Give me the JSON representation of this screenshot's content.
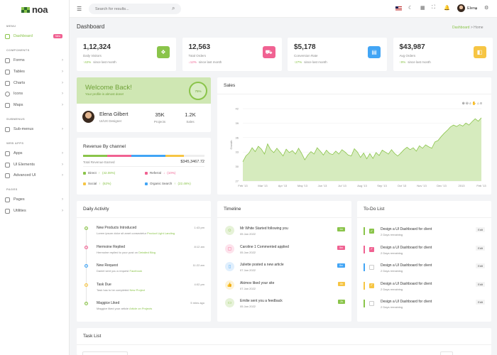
{
  "brand": {
    "name": "noa",
    "colors": [
      "#8ac44a",
      "#2d6a2d",
      "#8ac44a",
      "#2d6a2d",
      "#8ac44a",
      "#2d6a2d"
    ]
  },
  "sidebar": {
    "sections": [
      {
        "label": "MENU"
      },
      {
        "label": "COMPONENTS"
      },
      {
        "label": "SUBMENUS"
      },
      {
        "label": "WEB APPS"
      },
      {
        "label": "PAGES"
      }
    ],
    "dashboard": {
      "label": "Dashboard",
      "badge": "New"
    },
    "items": [
      {
        "label": "Forms"
      },
      {
        "label": "Tables"
      },
      {
        "label": "Charts"
      },
      {
        "label": "Icons"
      },
      {
        "label": "Maps"
      },
      {
        "label": "Sub-menus"
      },
      {
        "label": "Apps"
      },
      {
        "label": "UI Elements"
      },
      {
        "label": "Advanced UI"
      },
      {
        "label": "Pages"
      },
      {
        "label": "Utilities"
      }
    ]
  },
  "topbar": {
    "search_placeholder": "Search for results...",
    "user_name": "Elena"
  },
  "page": {
    "title": "Dashboard",
    "crumb_parent": "Dashboard",
    "crumb_sep": ">",
    "crumb_current": "Home"
  },
  "stats": [
    {
      "value": "1,12,324",
      "label": "Daily Visitors",
      "change": "42%",
      "since": "since last month",
      "dir": "up",
      "color": "#8ac44a",
      "icon": "bag-icon"
    },
    {
      "value": "12,563",
      "label": "Total Orders",
      "change": "12%",
      "since": "since last month",
      "dir": "down",
      "color": "#f06292",
      "icon": "cart-icon"
    },
    {
      "value": "$5,178",
      "label": "Conversion Rate",
      "change": "27%",
      "since": "since last month",
      "dir": "up",
      "color": "#42a5f5",
      "icon": "chart-icon"
    },
    {
      "value": "$43,987",
      "label": "Avg Orders",
      "change": "9%",
      "since": "since last month",
      "dir": "up",
      "color": "#f6c544",
      "icon": "wallet-icon"
    }
  ],
  "welcome": {
    "title": "Welcome Back!",
    "subtitle": "Your profile is almost done!",
    "progress": "75%"
  },
  "profile": {
    "name": "Elena Gilbert",
    "role": "UI/UX Designer",
    "projects": "35K",
    "projects_label": "Projects",
    "sales": "1.2K",
    "sales_label": "Sales"
  },
  "revenue": {
    "title": "Revenue By channel",
    "total_label": "Total Revenue Earned",
    "total": "$345,3467.72",
    "bar": [
      {
        "color": "#8ac44a",
        "pct": 20
      },
      {
        "color": "#f06292",
        "pct": 20
      },
      {
        "color": "#42a5f5",
        "pct": 28
      },
      {
        "color": "#f6c544",
        "pct": 15
      }
    ],
    "channels": [
      {
        "name": "Direct",
        "dir": "up",
        "change": "(42.08%)",
        "color": "#8ac44a"
      },
      {
        "name": "Referral",
        "dir": "down",
        "change": "(10%)",
        "color": "#f06292"
      },
      {
        "name": "Social",
        "dir": "up",
        "change": "(62%)",
        "color": "#f6c544"
      },
      {
        "name": "Organic Search",
        "dir": "up",
        "change": "(22.46%)",
        "color": "#42a5f5"
      }
    ]
  },
  "chart_data": {
    "type": "area",
    "title": "Sales",
    "ylabel": "Growth",
    "xlabel": "",
    "ylim": [
      27,
      42
    ],
    "yticks": [
      27,
      30,
      33,
      36,
      39,
      42
    ],
    "xticks": [
      "Feb '13",
      "Mar '13",
      "Apr '13",
      "May '13",
      "Jun '13",
      "Jul '13",
      "Aug '13",
      "Sep '13",
      "Oct '13",
      "Nov '13",
      "Dec '13",
      "2013",
      "Feb '13"
    ],
    "values": [
      31.0,
      32.2,
      32.8,
      33.9,
      33.1,
      34.2,
      33.6,
      32.6,
      34.7,
      33.5,
      32.9,
      33.8,
      33.0,
      32.2,
      33.6,
      32.9,
      33.3,
      32.6,
      33.8,
      32.7,
      31.4,
      32.4,
      33.1,
      32.6,
      33.9,
      33.2,
      32.4,
      33.4,
      32.7,
      32.5,
      33.2,
      32.6,
      33.5,
      33.0,
      32.4,
      32.2,
      33.7,
      33.0,
      31.9,
      32.8,
      31.6,
      32.7,
      31.7,
      32.9,
      32.3,
      33.4,
      33.0,
      32.6,
      33.5,
      32.7,
      32.2,
      32.8,
      33.5,
      34.0,
      33.5,
      33.9,
      33.2,
      34.3,
      33.8,
      34.5,
      34.1,
      33.8,
      35.1,
      35.4,
      36.2,
      36.9,
      37.5,
      38.2,
      38.6,
      38.3,
      38.7,
      38.4,
      39.0,
      38.6,
      39.3,
      39.9,
      39.4,
      40.1
    ]
  },
  "activity": {
    "title": "Daily Activity",
    "items": [
      {
        "title": "New Products Introduced",
        "desc": "Lorem ipsum dolor sit amet consectetur",
        "link": "Product Light Landing",
        "time": "1:43 pm",
        "color": "#8ac44a"
      },
      {
        "title": "Hermoine Replied",
        "desc": "Hermoine replied to your post on",
        "link": "Detailed Blog",
        "time": "8:12 am",
        "color": "#f06292"
      },
      {
        "title": "New Request",
        "desc": "Daniel sent you a request",
        "link": "Facebook",
        "time": "11:22 am",
        "color": "#42a5f5"
      },
      {
        "title": "Task Due",
        "desc": "Task has to be completed",
        "link": "New Project",
        "time": "4:02 pm",
        "color": "#f6c544"
      },
      {
        "title": "Maggice Liked",
        "desc": "Maggice liked your article",
        "link": "Article on Projects",
        "time": "5 mins ago",
        "color": "#8ac44a"
      }
    ]
  },
  "timeline": {
    "title": "Timeline",
    "items": [
      {
        "title": "Mr White Started following you",
        "date": "05 Jan 2022",
        "badge": "1m",
        "color": "#8ac44a",
        "bg": "#e6f2d8",
        "icon": "user-plus-icon"
      },
      {
        "title": "Caroline 1 Commented applied",
        "date": "05 Jan 2022",
        "badge": "5m",
        "color": "#f06292",
        "bg": "#fde3ec",
        "icon": "comment-icon"
      },
      {
        "title": "Juliette posted a new article",
        "date": "07 Jan 2022",
        "badge": "8m",
        "color": "#42a5f5",
        "bg": "#e0effd",
        "icon": "clipboard-icon"
      },
      {
        "title": "Akimov liked your site",
        "date": "07 Jan 2022",
        "badge": "6h",
        "color": "#f6c544",
        "bg": "#fdf3d6",
        "icon": "thumbs-up-icon"
      },
      {
        "title": "Emilie sent you a feedback",
        "date": "05 Jan 2022",
        "badge": "2h",
        "color": "#8ac44a",
        "bg": "#e6f2d8",
        "icon": "message-icon"
      }
    ]
  },
  "todo": {
    "title": "To-Do List",
    "items": [
      {
        "title": "Design a UI Dashboard for client",
        "sub": "2 Days remaining",
        "edit": "Edit",
        "color": "#8ac44a",
        "checked": true
      },
      {
        "title": "Design a UI Dashboard for client",
        "sub": "2 Days remaining",
        "edit": "Edit",
        "color": "#f06292",
        "checked": true
      },
      {
        "title": "Design a UI Dashboard for client",
        "sub": "2 Days remaining",
        "edit": "Edit",
        "color": "#42a5f5",
        "checked": false
      },
      {
        "title": "Design a UI Dashboard for client",
        "sub": "2 Days remaining",
        "edit": "Edit",
        "color": "#f6c544",
        "checked": true
      },
      {
        "title": "Design a UI Dashboard for client",
        "sub": "2 Days remaining",
        "edit": "Edit",
        "color": "#8ac44a",
        "checked": false
      }
    ]
  },
  "tasklist": {
    "title": "Task List"
  }
}
